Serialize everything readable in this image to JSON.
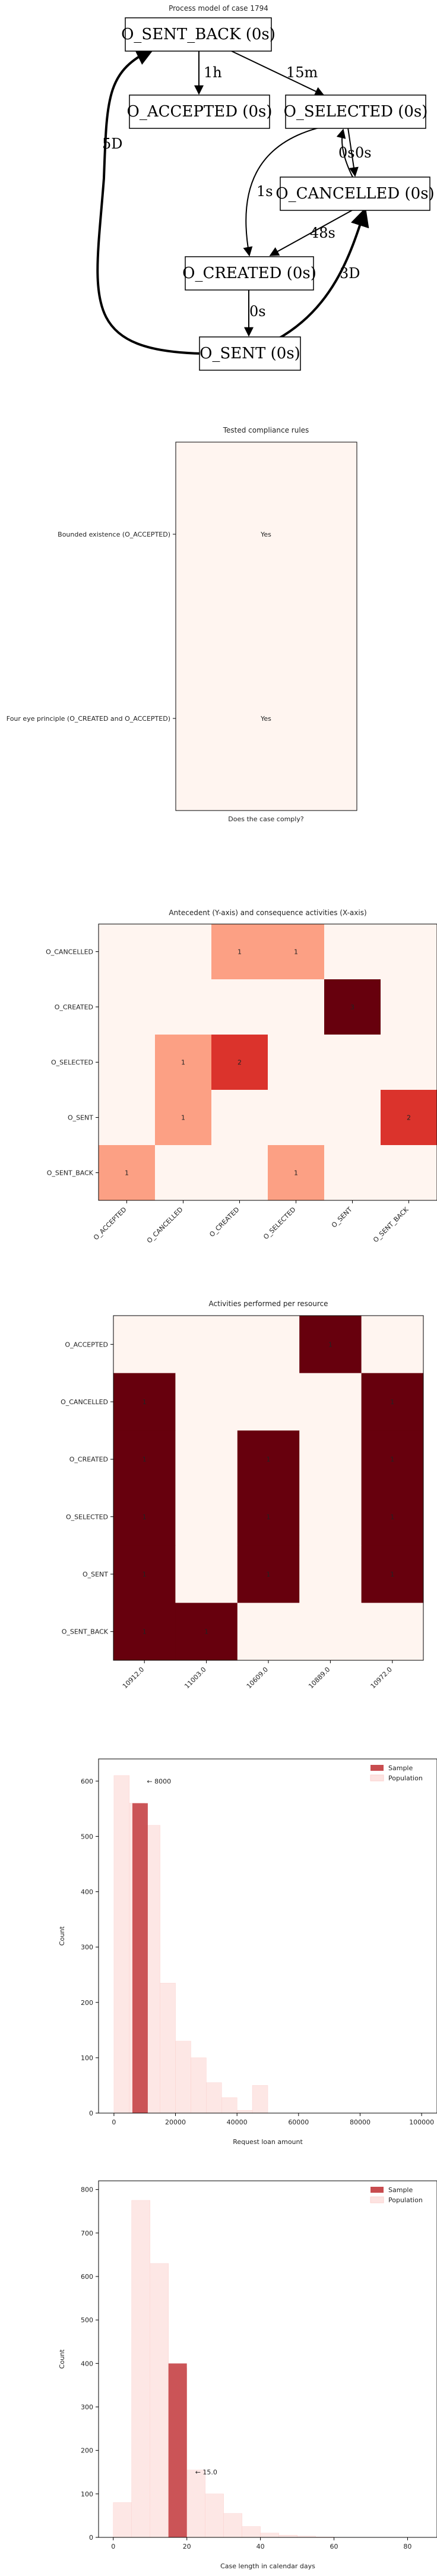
{
  "process_model": {
    "title": "Process model of case 1794",
    "nodes": [
      {
        "id": "sent_back",
        "label": "O_SENT_BACK (0s)"
      },
      {
        "id": "accepted",
        "label": "O_ACCEPTED (0s)"
      },
      {
        "id": "selected",
        "label": "O_SELECTED (0s)"
      },
      {
        "id": "cancelled",
        "label": "O_CANCELLED (0s)"
      },
      {
        "id": "created",
        "label": "O_CREATED (0s)"
      },
      {
        "id": "sent",
        "label": "O_SENT (0s)"
      }
    ],
    "edges": [
      {
        "from": "sent_back",
        "to": "accepted",
        "label": "1h"
      },
      {
        "from": "sent_back",
        "to": "selected",
        "label": "15m"
      },
      {
        "from": "selected",
        "to": "cancelled",
        "label": "0s"
      },
      {
        "from": "cancelled",
        "to": "selected",
        "label": "0s"
      },
      {
        "from": "selected",
        "to": "created",
        "label": "1s"
      },
      {
        "from": "cancelled",
        "to": "created",
        "label": "48s"
      },
      {
        "from": "created",
        "to": "sent",
        "label": "0s"
      },
      {
        "from": "sent",
        "to": "cancelled",
        "label": "3D"
      },
      {
        "from": "sent",
        "to": "sent_back",
        "label": "5D"
      }
    ]
  },
  "chart_data": [
    {
      "type": "table",
      "title": "Tested compliance rules",
      "xlabel": "Does the case comply?",
      "rows": [
        {
          "rule": "Bounded existence (O_ACCEPTED)",
          "value": "Yes"
        },
        {
          "rule": "Four eye principle (O_CREATED and O_ACCEPTED)",
          "value": "Yes"
        }
      ],
      "colors": {
        "cell": "#fff5f0",
        "text": "#5a6e9a"
      }
    },
    {
      "type": "heatmap",
      "title": "Antecedent (Y-axis) and consequence activities (X-axis)",
      "rows": [
        "O_CANCELLED",
        "O_CREATED",
        "O_SELECTED",
        "O_SENT",
        "O_SENT_BACK"
      ],
      "columns": [
        "O_ACCEPTED",
        "O_CANCELLED",
        "O_CREATED",
        "O_SELECTED",
        "O_SENT",
        "O_SENT_BACK"
      ],
      "values": [
        [
          0,
          0,
          1,
          1,
          0,
          0
        ],
        [
          0,
          0,
          0,
          0,
          3,
          0
        ],
        [
          0,
          1,
          2,
          0,
          0,
          0
        ],
        [
          0,
          1,
          0,
          0,
          0,
          2
        ],
        [
          1,
          0,
          0,
          1,
          0,
          0
        ]
      ],
      "vmax": 3,
      "colormap": "Reds"
    },
    {
      "type": "heatmap",
      "title": "Activities performed per resource",
      "rows": [
        "O_ACCEPTED",
        "O_CANCELLED",
        "O_CREATED",
        "O_SELECTED",
        "O_SENT",
        "O_SENT_BACK"
      ],
      "columns": [
        "10912.0",
        "11003.0",
        "10609.0",
        "10889.0",
        "10972.0"
      ],
      "values": [
        [
          0,
          0,
          0,
          1,
          0
        ],
        [
          1,
          0,
          0,
          0,
          1
        ],
        [
          1,
          0,
          1,
          0,
          1
        ],
        [
          1,
          0,
          1,
          0,
          1
        ],
        [
          1,
          0,
          1,
          0,
          1
        ],
        [
          1,
          1,
          0,
          0,
          0
        ]
      ],
      "vmax": 1,
      "colormap": "Reds"
    },
    {
      "type": "bar",
      "chart_kind": "histogram",
      "xlabel": "Request loan amount",
      "ylabel": "Count",
      "xlim": [
        -5000,
        105000
      ],
      "ylim": [
        0,
        640
      ],
      "xticks": [
        0,
        20000,
        40000,
        60000,
        80000,
        100000
      ],
      "yticks": [
        0,
        100,
        200,
        300,
        400,
        500,
        600
      ],
      "legend": {
        "placement": "top-right",
        "entries": [
          "Sample",
          "Population"
        ]
      },
      "series": [
        {
          "name": "Population",
          "bins": [
            [
              0,
              5000,
              610
            ],
            [
              5000,
              10000,
              560
            ],
            [
              10000,
              15000,
              520
            ],
            [
              15000,
              20000,
              235
            ],
            [
              20000,
              25000,
              130
            ],
            [
              25000,
              30000,
              100
            ],
            [
              30000,
              35000,
              55
            ],
            [
              35000,
              40000,
              28
            ],
            [
              40000,
              45000,
              5
            ],
            [
              45000,
              50000,
              50
            ]
          ],
          "color": "#fde3e1"
        },
        {
          "name": "Sample",
          "bins": [
            [
              6000,
              11000,
              560
            ]
          ],
          "color": "#c84c4f"
        }
      ],
      "annotation": {
        "text": "← 8000",
        "x": 8000,
        "y": 600
      }
    },
    {
      "type": "bar",
      "chart_kind": "histogram",
      "xlabel": "Case length in calendar days",
      "ylabel": "Count",
      "xlim": [
        -4,
        88
      ],
      "ylim": [
        0,
        820
      ],
      "xticks": [
        0,
        20,
        40,
        60,
        80
      ],
      "yticks": [
        0,
        100,
        200,
        300,
        400,
        500,
        600,
        700,
        800
      ],
      "legend": {
        "placement": "top-right",
        "entries": [
          "Sample",
          "Population"
        ]
      },
      "series": [
        {
          "name": "Population",
          "bins": [
            [
              0,
              5,
              80
            ],
            [
              5,
              10,
              775
            ],
            [
              10,
              15,
              630
            ],
            [
              15,
              20,
              390
            ],
            [
              20,
              25,
              155
            ],
            [
              25,
              30,
              100
            ],
            [
              30,
              35,
              55
            ],
            [
              35,
              40,
              25
            ],
            [
              40,
              45,
              10
            ],
            [
              45,
              50,
              5
            ],
            [
              50,
              55,
              3
            ],
            [
              55,
              60,
              1
            ]
          ],
          "color": "#fde3e1"
        },
        {
          "name": "Sample",
          "bins": [
            [
              15,
              20,
              400
            ]
          ],
          "color": "#c84c4f"
        }
      ],
      "annotation": {
        "text": "← 15.0",
        "x": 20,
        "y": 150
      }
    }
  ]
}
